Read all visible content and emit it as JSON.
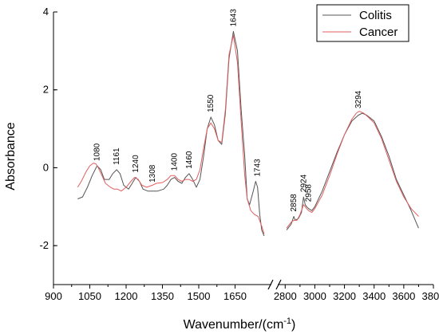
{
  "chart_data": {
    "type": "line",
    "xlabel": "Wavenumber/(cm",
    "xlabel_sup": "-1",
    "xlabel_close": ")",
    "ylabel": "Absorbance",
    "ylim": [
      -3,
      4
    ],
    "yticks": [
      {
        "value": 4,
        "label": "4"
      },
      {
        "value": 2,
        "label": "2"
      },
      {
        "value": 0,
        "label": "0"
      },
      {
        "value": -2,
        "label": "-2"
      }
    ],
    "axis_break": true,
    "segments": [
      {
        "xlim": [
          900,
          1800
        ],
        "ticks": [
          900,
          1050,
          1200,
          1350,
          1500,
          1650
        ]
      },
      {
        "xlim": [
          2750,
          3800
        ],
        "ticks": [
          2800,
          3000,
          3200,
          3400,
          3600,
          3800
        ]
      }
    ],
    "legend": {
      "position": "top-right",
      "entries": [
        "Colitis",
        "Cancer"
      ]
    },
    "series": [
      {
        "name": "Colitis",
        "color": "#555555",
        "segments": [
          [
            [
              1000,
              -0.8
            ],
            [
              1020,
              -0.75
            ],
            [
              1040,
              -0.5
            ],
            [
              1060,
              -0.2
            ],
            [
              1080,
              0.05
            ],
            [
              1095,
              -0.05
            ],
            [
              1110,
              -0.3
            ],
            [
              1130,
              -0.3
            ],
            [
              1145,
              -0.15
            ],
            [
              1161,
              -0.05
            ],
            [
              1175,
              -0.15
            ],
            [
              1190,
              -0.45
            ],
            [
              1210,
              -0.55
            ],
            [
              1225,
              -0.4
            ],
            [
              1240,
              -0.25
            ],
            [
              1255,
              -0.35
            ],
            [
              1270,
              -0.55
            ],
            [
              1290,
              -0.6
            ],
            [
              1308,
              -0.6
            ],
            [
              1330,
              -0.6
            ],
            [
              1355,
              -0.55
            ],
            [
              1370,
              -0.45
            ],
            [
              1385,
              -0.3
            ],
            [
              1400,
              -0.25
            ],
            [
              1415,
              -0.35
            ],
            [
              1430,
              -0.4
            ],
            [
              1445,
              -0.25
            ],
            [
              1460,
              -0.15
            ],
            [
              1475,
              -0.3
            ],
            [
              1490,
              -0.5
            ],
            [
              1505,
              -0.3
            ],
            [
              1520,
              0.3
            ],
            [
              1535,
              1.0
            ],
            [
              1550,
              1.3
            ],
            [
              1565,
              1.1
            ],
            [
              1580,
              0.7
            ],
            [
              1595,
              0.6
            ],
            [
              1610,
              1.4
            ],
            [
              1625,
              2.8
            ],
            [
              1643,
              3.5
            ],
            [
              1660,
              3.0
            ],
            [
              1675,
              1.5
            ],
            [
              1690,
              0.3
            ],
            [
              1700,
              -0.8
            ],
            [
              1710,
              -0.95
            ],
            [
              1725,
              -0.6
            ],
            [
              1735,
              -0.35
            ],
            [
              1743,
              -0.5
            ],
            [
              1752,
              -1.2
            ],
            [
              1760,
              -1.6
            ],
            [
              1770,
              -1.75
            ]
          ],
          [
            [
              2810,
              -1.6
            ],
            [
              2840,
              -1.45
            ],
            [
              2858,
              -1.25
            ],
            [
              2868,
              -1.35
            ],
            [
              2890,
              -1.3
            ],
            [
              2910,
              -1.15
            ],
            [
              2924,
              -0.75
            ],
            [
              2935,
              -0.95
            ],
            [
              2945,
              -1.0
            ],
            [
              2958,
              -1.05
            ],
            [
              2980,
              -1.1
            ],
            [
              3000,
              -1.0
            ],
            [
              3050,
              -0.6
            ],
            [
              3100,
              -0.1
            ],
            [
              3150,
              0.4
            ],
            [
              3200,
              0.85
            ],
            [
              3250,
              1.2
            ],
            [
              3294,
              1.35
            ],
            [
              3320,
              1.4
            ],
            [
              3350,
              1.35
            ],
            [
              3400,
              1.2
            ],
            [
              3450,
              0.8
            ],
            [
              3500,
              0.3
            ],
            [
              3550,
              -0.3
            ],
            [
              3600,
              -0.7
            ],
            [
              3650,
              -1.1
            ],
            [
              3700,
              -1.55
            ]
          ]
        ]
      },
      {
        "name": "Cancer",
        "color": "#e06060",
        "segments": [
          [
            [
              1000,
              -0.5
            ],
            [
              1015,
              -0.35
            ],
            [
              1035,
              -0.1
            ],
            [
              1050,
              0.05
            ],
            [
              1065,
              0.12
            ],
            [
              1075,
              0.1
            ],
            [
              1085,
              0.0
            ],
            [
              1100,
              -0.2
            ],
            [
              1115,
              -0.4
            ],
            [
              1135,
              -0.5
            ],
            [
              1150,
              -0.55
            ],
            [
              1165,
              -0.55
            ],
            [
              1180,
              -0.6
            ],
            [
              1200,
              -0.5
            ],
            [
              1220,
              -0.35
            ],
            [
              1235,
              -0.25
            ],
            [
              1250,
              -0.3
            ],
            [
              1265,
              -0.45
            ],
            [
              1285,
              -0.5
            ],
            [
              1308,
              -0.45
            ],
            [
              1325,
              -0.4
            ],
            [
              1350,
              -0.38
            ],
            [
              1370,
              -0.3
            ],
            [
              1385,
              -0.2
            ],
            [
              1400,
              -0.2
            ],
            [
              1415,
              -0.3
            ],
            [
              1430,
              -0.35
            ],
            [
              1445,
              -0.3
            ],
            [
              1460,
              -0.3
            ],
            [
              1475,
              -0.35
            ],
            [
              1490,
              -0.3
            ],
            [
              1505,
              -0.05
            ],
            [
              1520,
              0.5
            ],
            [
              1535,
              1.0
            ],
            [
              1550,
              1.15
            ],
            [
              1565,
              1.0
            ],
            [
              1580,
              0.7
            ],
            [
              1595,
              0.65
            ],
            [
              1610,
              1.5
            ],
            [
              1625,
              2.9
            ],
            [
              1643,
              3.4
            ],
            [
              1660,
              2.7
            ],
            [
              1675,
              1.2
            ],
            [
              1690,
              -0.2
            ],
            [
              1700,
              -0.8
            ],
            [
              1715,
              -1.1
            ],
            [
              1730,
              -1.2
            ],
            [
              1745,
              -1.25
            ],
            [
              1760,
              -1.5
            ],
            [
              1770,
              -1.7
            ]
          ],
          [
            [
              2810,
              -1.55
            ],
            [
              2840,
              -1.4
            ],
            [
              2858,
              -1.35
            ],
            [
              2880,
              -1.35
            ],
            [
              2900,
              -1.2
            ],
            [
              2924,
              -0.95
            ],
            [
              2945,
              -1.05
            ],
            [
              2958,
              -1.1
            ],
            [
              2980,
              -1.15
            ],
            [
              3000,
              -1.05
            ],
            [
              3050,
              -0.7
            ],
            [
              3100,
              -0.2
            ],
            [
              3150,
              0.35
            ],
            [
              3200,
              0.85
            ],
            [
              3250,
              1.25
            ],
            [
              3280,
              1.4
            ],
            [
              3300,
              1.45
            ],
            [
              3330,
              1.4
            ],
            [
              3360,
              1.3
            ],
            [
              3400,
              1.15
            ],
            [
              3450,
              0.75
            ],
            [
              3500,
              0.2
            ],
            [
              3550,
              -0.35
            ],
            [
              3600,
              -0.75
            ],
            [
              3650,
              -1.05
            ],
            [
              3700,
              -1.25
            ]
          ]
        ]
      }
    ],
    "annotations": [
      {
        "text": "1080",
        "x": 1080,
        "y": 0.05,
        "seg": 0
      },
      {
        "text": "1161",
        "x": 1161,
        "y": -0.05,
        "seg": 0
      },
      {
        "text": "1240",
        "x": 1240,
        "y": -0.25,
        "seg": 0
      },
      {
        "text": "1308",
        "x": 1308,
        "y": -0.5,
        "seg": 0
      },
      {
        "text": "1400",
        "x": 1400,
        "y": -0.2,
        "seg": 0
      },
      {
        "text": "1460",
        "x": 1460,
        "y": -0.15,
        "seg": 0
      },
      {
        "text": "1550",
        "x": 1550,
        "y": 1.3,
        "seg": 0
      },
      {
        "text": "1643",
        "x": 1643,
        "y": 3.5,
        "seg": 0
      },
      {
        "text": "1743",
        "x": 1743,
        "y": -0.35,
        "seg": 0
      },
      {
        "text": "2858",
        "x": 2858,
        "y": -1.25,
        "seg": 1
      },
      {
        "text": "2924",
        "x": 2924,
        "y": -0.75,
        "seg": 1
      },
      {
        "text": "2958",
        "x": 2958,
        "y": -1.0,
        "seg": 1
      },
      {
        "text": "3294",
        "x": 3294,
        "y": 1.4,
        "seg": 1
      }
    ]
  }
}
